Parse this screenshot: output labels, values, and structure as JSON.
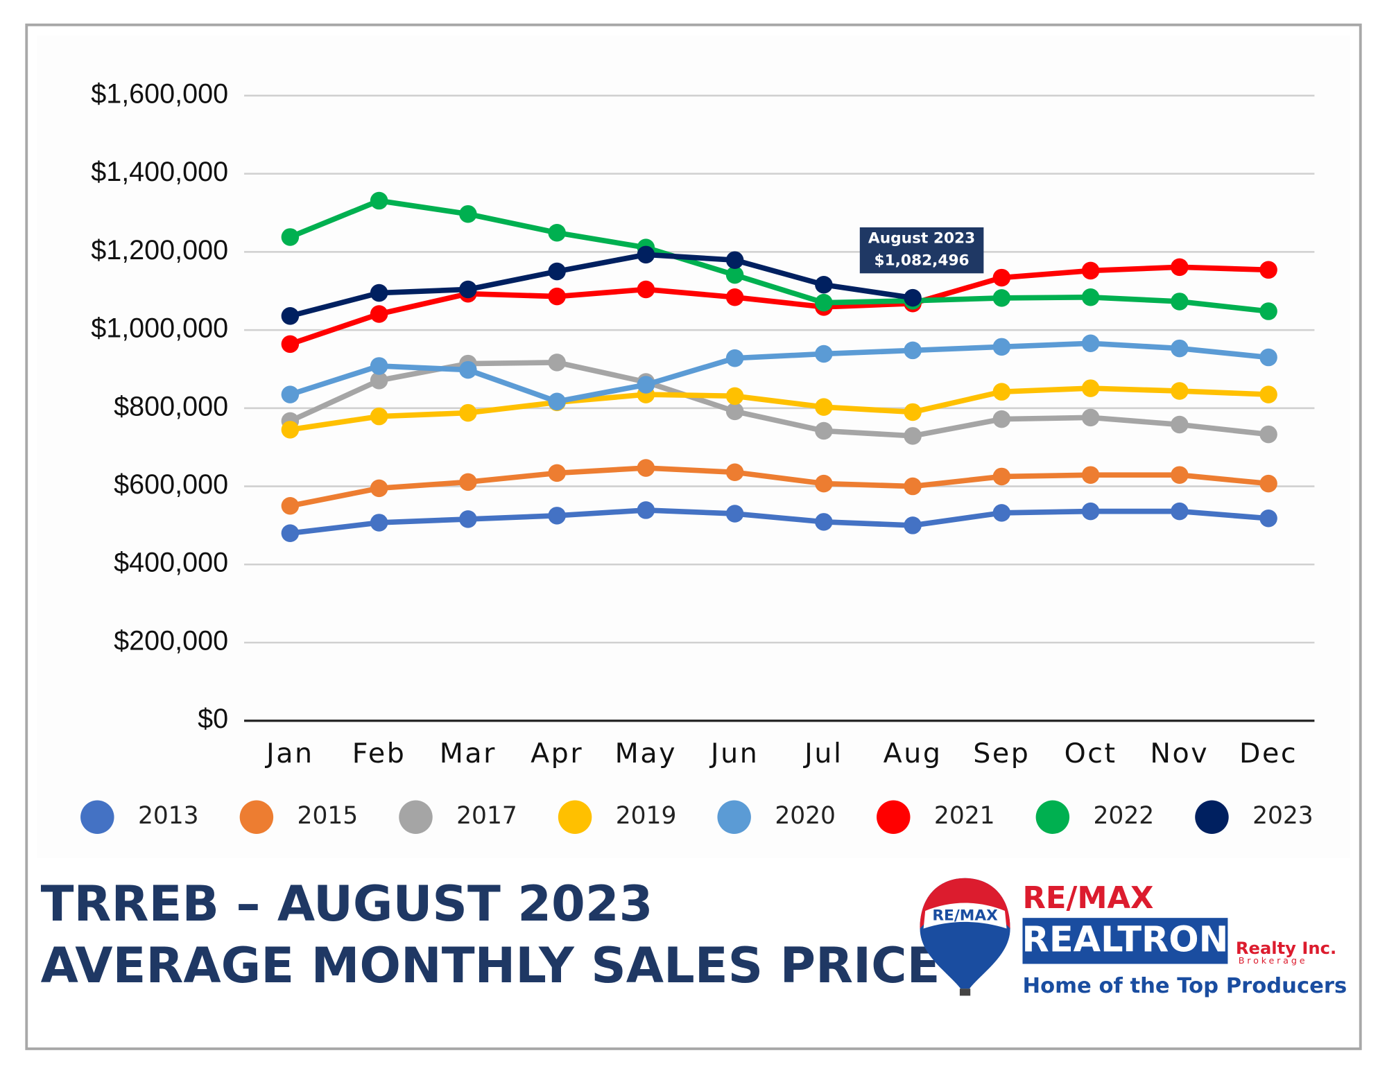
{
  "chart_data": {
    "type": "line",
    "categories": [
      "Jan",
      "Feb",
      "Mar",
      "Apr",
      "May",
      "Jun",
      "Jul",
      "Aug",
      "Sep",
      "Oct",
      "Nov",
      "Dec"
    ],
    "ylim": [
      0,
      1600000
    ],
    "yticks": [
      {
        "value": 0,
        "label": "$0"
      },
      {
        "value": 200000,
        "label": "$200,000"
      },
      {
        "value": 400000,
        "label": "$400,000"
      },
      {
        "value": 600000,
        "label": "$600,000"
      },
      {
        "value": 800000,
        "label": "$800,000"
      },
      {
        "value": 1000000,
        "label": "$1,000,000"
      },
      {
        "value": 1200000,
        "label": "$1,200,000"
      },
      {
        "value": 1400000,
        "label": "$1,400,000"
      },
      {
        "value": 1600000,
        "label": "$1,600,000"
      }
    ],
    "grid": true,
    "legend": "bottom",
    "series": [
      {
        "name": "2013",
        "color": "#4472c4",
        "values": [
          480000,
          507000,
          516000,
          525000,
          539000,
          530000,
          509000,
          500000,
          532000,
          536000,
          536000,
          518000
        ]
      },
      {
        "name": "2015",
        "color": "#ed7d31",
        "values": [
          550000,
          595000,
          611000,
          634000,
          647000,
          636000,
          607000,
          600000,
          625000,
          629000,
          629000,
          607000
        ]
      },
      {
        "name": "2017",
        "color": "#a5a5a5",
        "values": [
          767000,
          871000,
          914000,
          917000,
          867000,
          792000,
          742000,
          729000,
          772000,
          776000,
          758000,
          733000
        ]
      },
      {
        "name": "2019",
        "color": "#ffc000",
        "values": [
          745000,
          779000,
          788000,
          815000,
          835000,
          831000,
          803000,
          790000,
          842000,
          851000,
          844000,
          835000
        ]
      },
      {
        "name": "2020",
        "color": "#5b9bd5",
        "values": [
          835000,
          908000,
          898000,
          817000,
          860000,
          928000,
          939000,
          948000,
          957000,
          966000,
          953000,
          930000
        ]
      },
      {
        "name": "2021",
        "color": "#ff0000",
        "values": [
          964000,
          1041000,
          1093000,
          1086000,
          1104000,
          1084000,
          1059000,
          1068000,
          1134000,
          1152000,
          1161000,
          1154000
        ]
      },
      {
        "name": "2022",
        "color": "#00b050",
        "values": [
          1238000,
          1331000,
          1297000,
          1249000,
          1211000,
          1141000,
          1070000,
          1075000,
          1082000,
          1084000,
          1073000,
          1048000
        ]
      },
      {
        "name": "2023",
        "color": "#002060",
        "values": [
          1036000,
          1095000,
          1104000,
          1150000,
          1193000,
          1179000,
          1116000,
          1082496,
          null,
          null,
          null,
          null
        ]
      }
    ],
    "annotation": [
      "August 2023",
      "$1,082,496"
    ]
  },
  "footer": {
    "title_lines": [
      "TRREB – AUGUST 2023",
      "AVERAGE MONTHLY SALES PRICE"
    ],
    "logo": {
      "balloon": "RE/MAX",
      "brand": "RE/MAX",
      "name": "REALTRON",
      "suffix": "Realty Inc.",
      "sub": "Brokerage",
      "tagline": "Home of the Top Producers"
    }
  }
}
